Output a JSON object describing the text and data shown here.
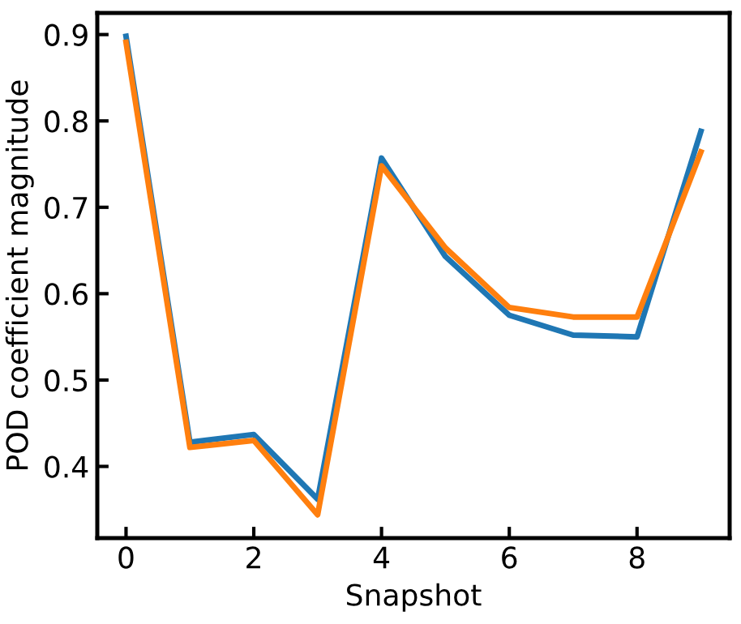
{
  "chart_data": {
    "type": "line",
    "xlabel": "Snapshot",
    "ylabel": "POD coefficient magnitude",
    "x": [
      0,
      1,
      2,
      3,
      4,
      5,
      6,
      7,
      8,
      9
    ],
    "series": [
      {
        "color": "#1f77b4",
        "values": [
          0.898,
          0.428,
          0.437,
          0.362,
          0.757,
          0.643,
          0.575,
          0.552,
          0.55,
          0.788
        ]
      },
      {
        "color": "#ff7f0e",
        "values": [
          0.891,
          0.422,
          0.43,
          0.344,
          0.748,
          0.653,
          0.584,
          0.573,
          0.573,
          0.764
        ]
      }
    ],
    "xlim": [
      -0.45,
      9.45
    ],
    "xticks": [
      0,
      2,
      4,
      6,
      8
    ],
    "ylim": [
      0.317,
      0.925
    ],
    "yticks": [
      0.4,
      0.5,
      0.6,
      0.7,
      0.8,
      0.9
    ],
    "grid": false,
    "legend": false,
    "marker": "none",
    "line_style": "solid"
  }
}
